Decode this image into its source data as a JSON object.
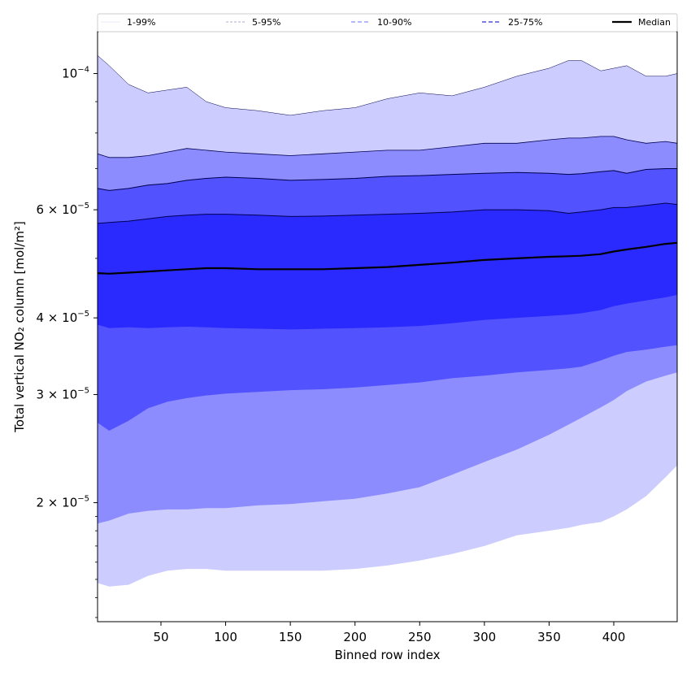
{
  "chart_data": {
    "type": "area",
    "xlabel": "Binned row index",
    "ylabel": "Total vertical NO₂ column [mol/m²]",
    "xlim": [
      1,
      449
    ],
    "ylim": [
      1.28e-05,
      0.000117
    ],
    "y_scale": "log",
    "grid": false,
    "x_ticks": [
      50,
      100,
      150,
      200,
      250,
      300,
      350,
      400
    ],
    "x_tick_labels": [
      "50",
      "100",
      "150",
      "200",
      "250",
      "300",
      "350",
      "400"
    ],
    "y_ticks": [
      {
        "value": 2e-05,
        "mantissa": "2",
        "exp": "−5"
      },
      {
        "value": 3e-05,
        "mantissa": "3",
        "exp": "−5"
      },
      {
        "value": 4e-05,
        "mantissa": "4",
        "exp": "−5"
      },
      {
        "value": 6e-05,
        "mantissa": "6",
        "exp": "−5"
      },
      {
        "value": 0.0001,
        "mantissa": "10",
        "exp": "−4"
      }
    ],
    "legend_position": "top",
    "legend": [
      "1-99%",
      "5-95%",
      "10-90%",
      "25-75%",
      "Median"
    ],
    "x": [
      1,
      10,
      25,
      40,
      55,
      70,
      85,
      100,
      125,
      150,
      175,
      200,
      225,
      250,
      275,
      300,
      325,
      350,
      365,
      375,
      390,
      400,
      410,
      425,
      440,
      449
    ],
    "bands": [
      {
        "name": "1-99%",
        "color": "#ccccff",
        "lower": [
          1.48e-05,
          1.46e-05,
          1.47e-05,
          1.52e-05,
          1.55e-05,
          1.56e-05,
          1.56e-05,
          1.55e-05,
          1.55e-05,
          1.55e-05,
          1.55e-05,
          1.56e-05,
          1.58e-05,
          1.61e-05,
          1.65e-05,
          1.7e-05,
          1.77e-05,
          1.8e-05,
          1.82e-05,
          1.84e-05,
          1.86e-05,
          1.9e-05,
          1.95e-05,
          2.05e-05,
          2.2e-05,
          2.3e-05
        ],
        "upper": [
          0.000107,
          0.000103,
          9.6e-05,
          9.3e-05,
          9.4e-05,
          9.5e-05,
          9e-05,
          8.8e-05,
          8.7e-05,
          8.55e-05,
          8.7e-05,
          8.8e-05,
          9.1e-05,
          9.3e-05,
          9.2e-05,
          9.5e-05,
          9.9e-05,
          0.000102,
          0.000105,
          0.000105,
          0.000101,
          0.000102,
          0.000103,
          9.9e-05,
          9.9e-05,
          0.0001
        ]
      },
      {
        "name": "5-95%",
        "color": "#8c8cff",
        "lower": [
          1.85e-05,
          1.87e-05,
          1.92e-05,
          1.94e-05,
          1.95e-05,
          1.95e-05,
          1.96e-05,
          1.96e-05,
          1.98e-05,
          1.99e-05,
          2.01e-05,
          2.03e-05,
          2.07e-05,
          2.12e-05,
          2.22e-05,
          2.33e-05,
          2.44e-05,
          2.58e-05,
          2.68e-05,
          2.75e-05,
          2.86e-05,
          2.94e-05,
          3.04e-05,
          3.15e-05,
          3.22e-05,
          3.26e-05
        ],
        "upper": [
          7.4e-05,
          7.3e-05,
          7.3e-05,
          7.35e-05,
          7.45e-05,
          7.55e-05,
          7.5e-05,
          7.45e-05,
          7.4e-05,
          7.35e-05,
          7.4e-05,
          7.45e-05,
          7.5e-05,
          7.5e-05,
          7.6e-05,
          7.7e-05,
          7.7e-05,
          7.8e-05,
          7.85e-05,
          7.85e-05,
          7.9e-05,
          7.9e-05,
          7.8e-05,
          7.7e-05,
          7.75e-05,
          7.7e-05
        ]
      },
      {
        "name": "10-90%",
        "color": "#5252ff",
        "lower": [
          2.7e-05,
          2.62e-05,
          2.72e-05,
          2.85e-05,
          2.92e-05,
          2.96e-05,
          2.99e-05,
          3.01e-05,
          3.03e-05,
          3.05e-05,
          3.06e-05,
          3.08e-05,
          3.11e-05,
          3.14e-05,
          3.19e-05,
          3.22e-05,
          3.26e-05,
          3.29e-05,
          3.31e-05,
          3.33e-05,
          3.41e-05,
          3.47e-05,
          3.52e-05,
          3.55e-05,
          3.59e-05,
          3.61e-05
        ],
        "upper": [
          6.5e-05,
          6.45e-05,
          6.5e-05,
          6.58e-05,
          6.62e-05,
          6.7e-05,
          6.75e-05,
          6.78e-05,
          6.75e-05,
          6.7e-05,
          6.72e-05,
          6.75e-05,
          6.8e-05,
          6.82e-05,
          6.85e-05,
          6.88e-05,
          6.9e-05,
          6.88e-05,
          6.85e-05,
          6.87e-05,
          6.92e-05,
          6.95e-05,
          6.88e-05,
          6.98e-05,
          7e-05,
          7e-05
        ]
      },
      {
        "name": "25-75%",
        "color": "#2a2aff",
        "lower": [
          3.9e-05,
          3.85e-05,
          3.86e-05,
          3.85e-05,
          3.86e-05,
          3.87e-05,
          3.86e-05,
          3.85e-05,
          3.84e-05,
          3.83e-05,
          3.84e-05,
          3.85e-05,
          3.86e-05,
          3.88e-05,
          3.92e-05,
          3.97e-05,
          4e-05,
          4.03e-05,
          4.05e-05,
          4.07e-05,
          4.12e-05,
          4.18e-05,
          4.22e-05,
          4.27e-05,
          4.32e-05,
          4.36e-05
        ],
        "upper": [
          5.7e-05,
          5.72e-05,
          5.75e-05,
          5.8e-05,
          5.85e-05,
          5.88e-05,
          5.9e-05,
          5.9e-05,
          5.88e-05,
          5.85e-05,
          5.86e-05,
          5.88e-05,
          5.9e-05,
          5.92e-05,
          5.95e-05,
          6e-05,
          6e-05,
          5.98e-05,
          5.92e-05,
          5.95e-05,
          6e-05,
          6.05e-05,
          6.05e-05,
          6.1e-05,
          6.15e-05,
          6.12e-05
        ]
      },
      {
        "name": "Median",
        "color": "#000000",
        "values": [
          4.73e-05,
          4.72e-05,
          4.74e-05,
          4.76e-05,
          4.78e-05,
          4.8e-05,
          4.82e-05,
          4.82e-05,
          4.8e-05,
          4.8e-05,
          4.8e-05,
          4.82e-05,
          4.84e-05,
          4.88e-05,
          4.92e-05,
          4.97e-05,
          5e-05,
          5.03e-05,
          5.04e-05,
          5.05e-05,
          5.08e-05,
          5.13e-05,
          5.17e-05,
          5.22e-05,
          5.28e-05,
          5.3e-05
        ]
      }
    ]
  }
}
